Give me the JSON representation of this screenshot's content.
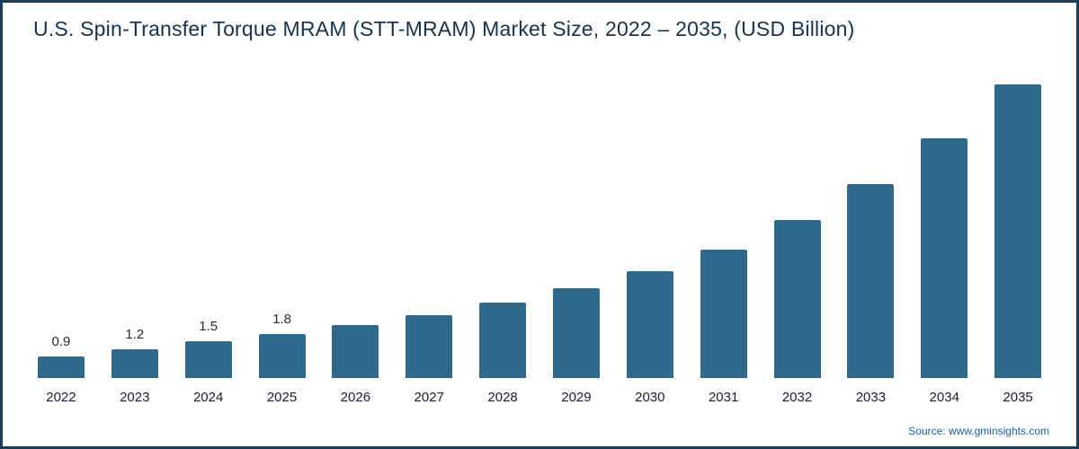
{
  "title": "U.S. Spin-Transfer Torque MRAM (STT-MRAM) Market Size, 2022 – 2035, (USD Billion)",
  "source": "Source: www.gminsights.com",
  "colors": {
    "bar": "#2f6a8d",
    "frame_border": "#1d3d5c",
    "title_text": "#15324f",
    "source_text": "#1b5faa"
  },
  "chart_data": {
    "type": "bar",
    "title": "U.S. Spin-Transfer Torque MRAM (STT-MRAM) Market Size, 2022 – 2035, (USD Billion)",
    "categories": [
      "2022",
      "2023",
      "2024",
      "2025",
      "2026",
      "2027",
      "2028",
      "2029",
      "2030",
      "2031",
      "2032",
      "2033",
      "2034",
      "2035"
    ],
    "values": [
      0.9,
      1.2,
      1.5,
      1.8,
      2.2,
      2.6,
      3.1,
      3.7,
      4.4,
      5.3,
      6.5,
      8.0,
      9.9,
      12.1
    ],
    "data_labels": [
      "0.9",
      "1.2",
      "1.5",
      "1.8",
      "",
      "",
      "",
      "",
      "",
      "",
      "",
      "",
      "",
      ""
    ],
    "xlabel": "",
    "ylabel": "",
    "ylim": [
      0,
      12.4
    ],
    "grid": false,
    "legend_position": "none",
    "bar_color": "#2f6a8d"
  }
}
